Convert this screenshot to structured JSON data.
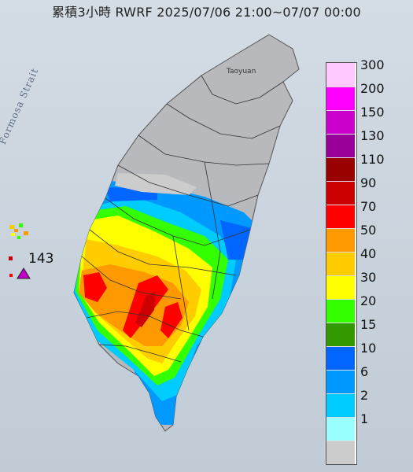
{
  "header": {
    "title": "累積3小時 RWRF 2025/07/06 21:00~07/07 00:00"
  },
  "map": {
    "strait_label": "Formosa Strait",
    "city_label": "Taoyuan",
    "max_value": "143",
    "colors": {
      "land": "#b7b9bc",
      "sea": "#c4ced8",
      "marker": "#c000c8"
    }
  },
  "legend": {
    "items": [
      {
        "label": "300",
        "color": "#ffc8ff"
      },
      {
        "label": "200",
        "color": "#ff00ff"
      },
      {
        "label": "150",
        "color": "#cc00cc"
      },
      {
        "label": "130",
        "color": "#990099"
      },
      {
        "label": "110",
        "color": "#990000"
      },
      {
        "label": "90",
        "color": "#cc0000"
      },
      {
        "label": "70",
        "color": "#ff0000"
      },
      {
        "label": "50",
        "color": "#ff9900"
      },
      {
        "label": "40",
        "color": "#ffcc00"
      },
      {
        "label": "30",
        "color": "#ffff00"
      },
      {
        "label": "20",
        "color": "#33ff00"
      },
      {
        "label": "15",
        "color": "#339900"
      },
      {
        "label": "10",
        "color": "#0066ff"
      },
      {
        "label": "6",
        "color": "#0099ff"
      },
      {
        "label": "2",
        "color": "#00ccff"
      },
      {
        "label": "1",
        "color": "#99ffff"
      },
      {
        "label": "",
        "color": "#cccccc"
      }
    ]
  }
}
